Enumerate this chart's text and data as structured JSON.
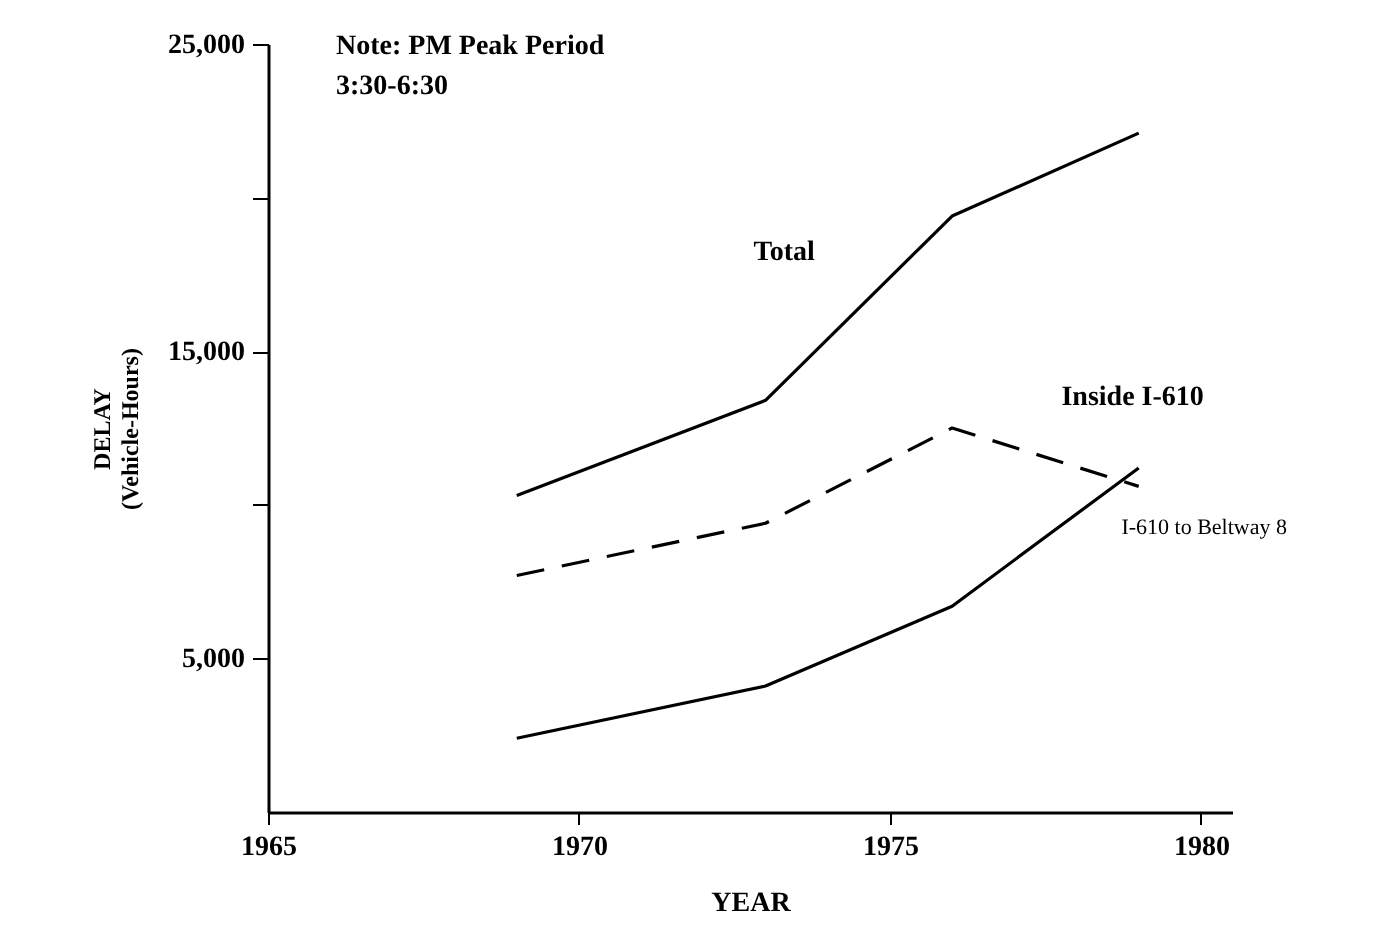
{
  "chart_data": {
    "type": "line",
    "xlabel": "YEAR",
    "ylabel": "DELAY\n(Vehicle-Hours)",
    "annotations": [
      "Note: PM Peak Period\n3:30-6:30"
    ],
    "x": [
      1969,
      1973,
      1976,
      1979
    ],
    "xlim": [
      1965,
      1980.5
    ],
    "xticks": [
      1965,
      1970,
      1975,
      1980
    ],
    "ylim": [
      0,
      25000
    ],
    "yticks": [
      {
        "value": 5000,
        "label": "5,000"
      },
      {
        "value": 10000,
        "label": null
      },
      {
        "value": 15000,
        "label": "15,000"
      },
      {
        "value": 20000,
        "label": null
      },
      {
        "value": 25000,
        "label": "25,000"
      }
    ],
    "grid": false,
    "legend": false,
    "marker": "none",
    "series": [
      {
        "name": "Total",
        "color": "#000000",
        "line_style": "solid",
        "values": [
          10300,
          13400,
          19400,
          22100
        ]
      },
      {
        "name": "Inside I-610",
        "color": "#000000",
        "line_style": "dashed",
        "values": [
          7700,
          9400,
          12500,
          10600
        ]
      },
      {
        "name": "I-610 to Beltway 8",
        "color": "#000000",
        "line_style": "solid",
        "values": [
          2400,
          4100,
          6700,
          11200
        ]
      }
    ]
  }
}
